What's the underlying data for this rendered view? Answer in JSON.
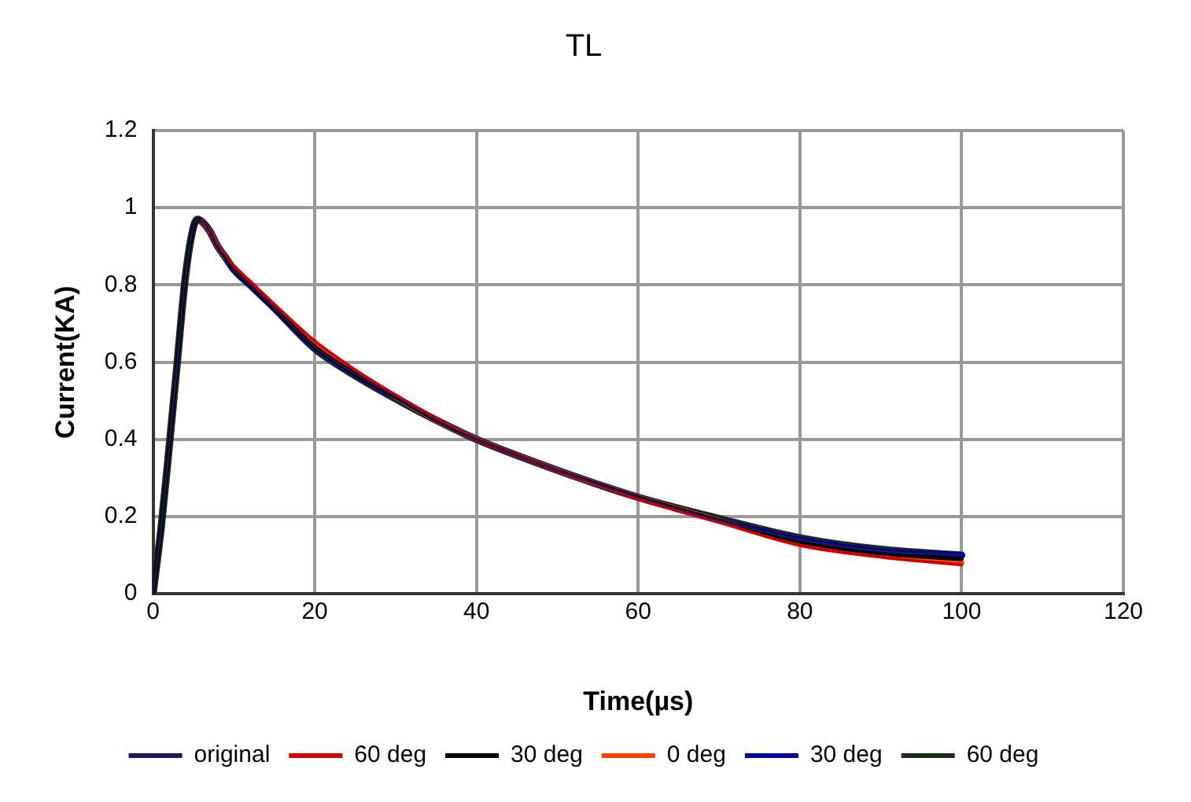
{
  "chart_data": {
    "type": "line",
    "title": "TL",
    "xlabel": "Time(µs)",
    "ylabel": "Current(KA)",
    "x": [
      0,
      1,
      2,
      3,
      4,
      5,
      5.5,
      6,
      7,
      8,
      9,
      10,
      12,
      15,
      20,
      25,
      30,
      35,
      40,
      50,
      60,
      70,
      80,
      90,
      100
    ],
    "xlim": [
      0,
      120
    ],
    "xticks": [
      0,
      20,
      40,
      60,
      80,
      100,
      120
    ],
    "ylim": [
      0,
      1.2
    ],
    "yticks": [
      0,
      0.2,
      0.4,
      0.6,
      0.8,
      1,
      1.2
    ],
    "grid": true,
    "legend": "bottom",
    "marker": "none",
    "line_style": "solid",
    "series": [
      {
        "name": "original",
        "color": "#1a1a5a",
        "values": [
          0,
          0.17,
          0.38,
          0.6,
          0.82,
          0.95,
          0.97,
          0.965,
          0.94,
          0.9,
          0.87,
          0.84,
          0.8,
          0.74,
          0.64,
          0.57,
          0.51,
          0.45,
          0.4,
          0.32,
          0.25,
          0.19,
          0.14,
          0.11,
          0.1
        ]
      },
      {
        "name": "60 deg",
        "color": "#cc0000",
        "values": [
          null,
          null,
          null,
          null,
          null,
          null,
          null,
          0.965,
          0.94,
          0.905,
          0.875,
          0.85,
          0.81,
          0.75,
          0.655,
          0.58,
          0.515,
          0.455,
          0.4,
          0.32,
          0.245,
          0.185,
          0.125,
          0.095,
          0.075
        ]
      },
      {
        "name": "30 deg",
        "color": "#000000",
        "values": [
          0,
          0.17,
          0.38,
          0.6,
          0.82,
          0.95,
          0.97,
          0.965,
          0.94,
          0.9,
          0.87,
          0.84,
          0.8,
          0.74,
          0.64,
          0.57,
          0.51,
          0.45,
          0.4,
          0.32,
          0.25,
          0.19,
          0.135,
          0.105,
          0.09
        ]
      },
      {
        "name": "0 deg",
        "color": "#ff4000",
        "values": [
          null,
          null,
          null,
          null,
          null,
          null,
          null,
          0.965,
          0.94,
          0.9,
          0.87,
          0.845,
          0.805,
          0.745,
          0.645,
          0.575,
          0.51,
          0.45,
          0.4,
          0.32,
          0.25,
          0.19,
          0.13,
          0.1,
          0.08
        ]
      },
      {
        "name": "30 deg",
        "color": "#000099",
        "values": [
          null,
          null,
          null,
          null,
          null,
          null,
          null,
          0.965,
          0.94,
          0.9,
          0.87,
          0.84,
          0.8,
          0.74,
          0.64,
          0.57,
          0.51,
          0.45,
          0.4,
          0.32,
          0.25,
          0.19,
          0.14,
          0.11,
          0.1
        ]
      },
      {
        "name": "60 deg",
        "color": "#1a2a1a",
        "values": [
          0,
          0.17,
          0.38,
          0.6,
          0.82,
          0.95,
          0.97,
          0.965,
          0.94,
          0.9,
          0.87,
          0.84,
          0.8,
          0.74,
          0.635,
          0.565,
          0.505,
          0.45,
          0.4,
          0.32,
          0.25,
          0.195,
          0.145,
          0.115,
          0.1
        ]
      }
    ]
  }
}
